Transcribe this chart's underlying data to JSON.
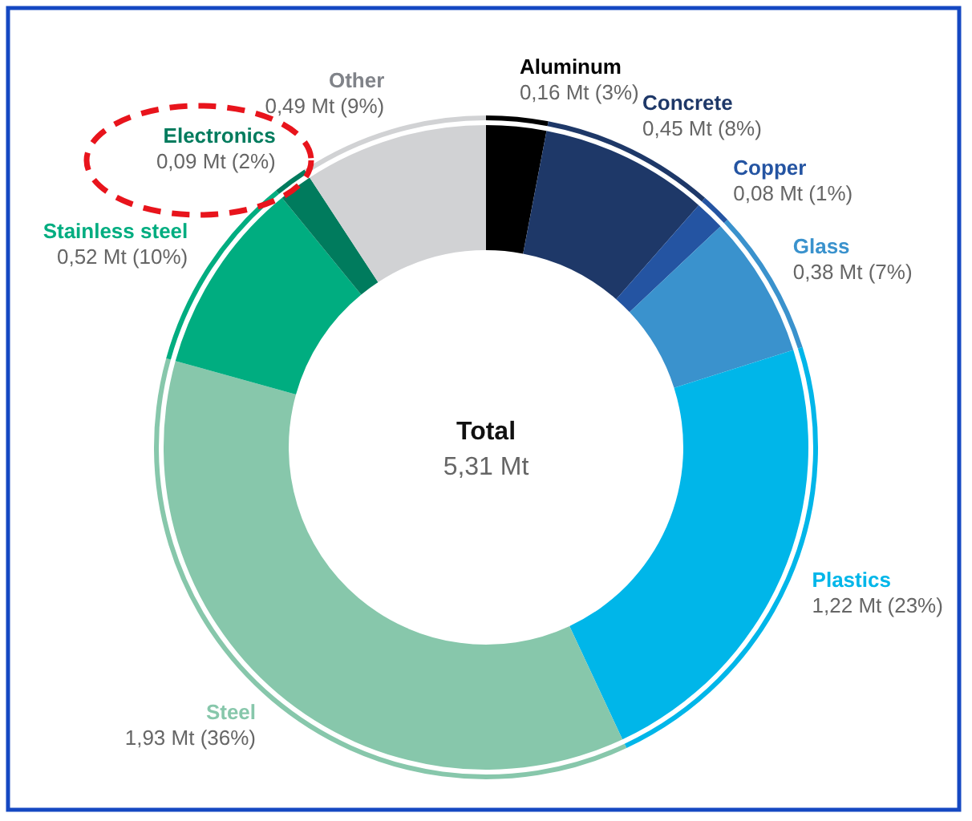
{
  "chart_data": {
    "type": "donut",
    "categories": [
      "Aluminum",
      "Concrete",
      "Copper",
      "Glass",
      "Plastics",
      "Steel",
      "Stainless steel",
      "Electronics",
      "Other"
    ],
    "values": [
      0.16,
      0.45,
      0.08,
      0.38,
      1.22,
      1.93,
      0.52,
      0.09,
      0.49
    ],
    "colors": [
      "#000000",
      "#1e3868",
      "#2454a2",
      "#3a92cd",
      "#00b6e9",
      "#87c7ab",
      "#00ad80",
      "#007b5d",
      "#d1d2d4"
    ],
    "value_labels": [
      "0,16 Mt (3%)",
      "0,45 Mt (8%)",
      "0,08 Mt (1%)",
      "0,38 Mt (7%)",
      "1,22 Mt (23%)",
      "1,93 Mt (36%)",
      "0,52 Mt (10%)",
      "0,09 Mt (2%)",
      "0,49 Mt (9%)"
    ],
    "annotations": [
      "Total",
      "5,31 Mt"
    ]
  }
}
